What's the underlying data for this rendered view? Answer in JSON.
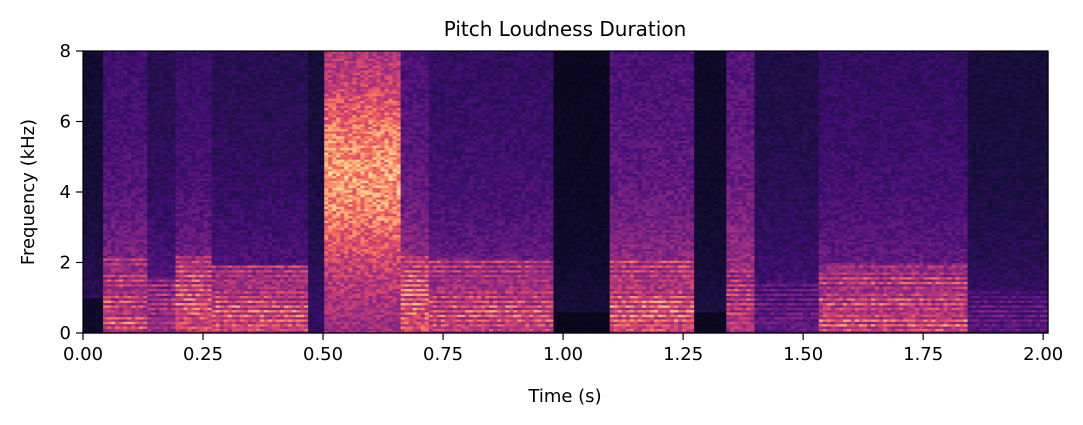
{
  "chart_data": {
    "type": "heatmap",
    "title": "Pitch Loudness Duration",
    "xlabel": "Time (s)",
    "ylabel": "Frequency (kHz)",
    "xlim": [
      0,
      2.01
    ],
    "ylim": [
      0,
      8
    ],
    "x_ticks": [
      0.0,
      0.25,
      0.5,
      0.75,
      1.0,
      1.25,
      1.5,
      1.75,
      2.0
    ],
    "x_tick_labels": [
      "0.00",
      "0.25",
      "0.50",
      "0.75",
      "1.00",
      "1.25",
      "1.50",
      "1.75",
      "2.00"
    ],
    "y_ticks": [
      0,
      2,
      4,
      6,
      8
    ],
    "y_tick_labels": [
      "0",
      "2",
      "4",
      "6",
      "8"
    ],
    "colormap": "magma",
    "colormap_stops": [
      "#000004",
      "#180f3d",
      "#440f76",
      "#721f81",
      "#9e2f7f",
      "#cd4071",
      "#f1605d",
      "#fd9668",
      "#feca8d",
      "#fcfdbf"
    ],
    "segments": [
      {
        "start": 0.0,
        "end": 0.04,
        "level": 0.12,
        "f0": 0,
        "low_extent": 1.0,
        "high_energy": 0.15
      },
      {
        "start": 0.04,
        "end": 0.13,
        "level": 0.72,
        "f0": 0.12,
        "low_extent": 2.2,
        "high_energy": 0.35
      },
      {
        "start": 0.13,
        "end": 0.19,
        "level": 0.62,
        "f0": 0.13,
        "low_extent": 1.6,
        "high_energy": 0.25
      },
      {
        "start": 0.19,
        "end": 0.27,
        "level": 0.8,
        "f0": 0.13,
        "low_extent": 2.2,
        "high_energy": 0.32
      },
      {
        "start": 0.27,
        "end": 0.47,
        "level": 0.76,
        "f0": 0.14,
        "low_extent": 1.9,
        "high_energy": 0.25
      },
      {
        "start": 0.47,
        "end": 0.5,
        "level": 0.3,
        "f0": 0,
        "low_extent": 1.0,
        "high_energy": 0.18
      },
      {
        "start": 0.5,
        "end": 0.66,
        "level": 0.78,
        "f0": 0,
        "low_extent": 8.0,
        "high_energy": 0.8
      },
      {
        "start": 0.66,
        "end": 0.72,
        "level": 0.85,
        "f0": 0.13,
        "low_extent": 2.2,
        "high_energy": 0.4
      },
      {
        "start": 0.72,
        "end": 0.98,
        "level": 0.74,
        "f0": 0.14,
        "low_extent": 2.1,
        "high_energy": 0.3
      },
      {
        "start": 0.98,
        "end": 1.1,
        "level": 0.08,
        "f0": 0,
        "low_extent": 0.6,
        "high_energy": 0.1
      },
      {
        "start": 1.1,
        "end": 1.27,
        "level": 0.8,
        "f0": 0.14,
        "low_extent": 2.1,
        "high_energy": 0.4
      },
      {
        "start": 1.27,
        "end": 1.34,
        "level": 0.1,
        "f0": 0,
        "low_extent": 0.6,
        "high_energy": 0.12
      },
      {
        "start": 1.34,
        "end": 1.4,
        "level": 0.7,
        "f0": 0.13,
        "low_extent": 1.8,
        "high_energy": 0.45
      },
      {
        "start": 1.4,
        "end": 1.53,
        "level": 0.42,
        "f0": 0.13,
        "low_extent": 1.4,
        "high_energy": 0.22
      },
      {
        "start": 1.53,
        "end": 1.84,
        "level": 0.74,
        "f0": 0.15,
        "low_extent": 2.0,
        "high_energy": 0.3
      },
      {
        "start": 1.84,
        "end": 2.01,
        "level": 0.38,
        "f0": 0.14,
        "low_extent": 1.2,
        "high_energy": 0.18
      }
    ]
  }
}
